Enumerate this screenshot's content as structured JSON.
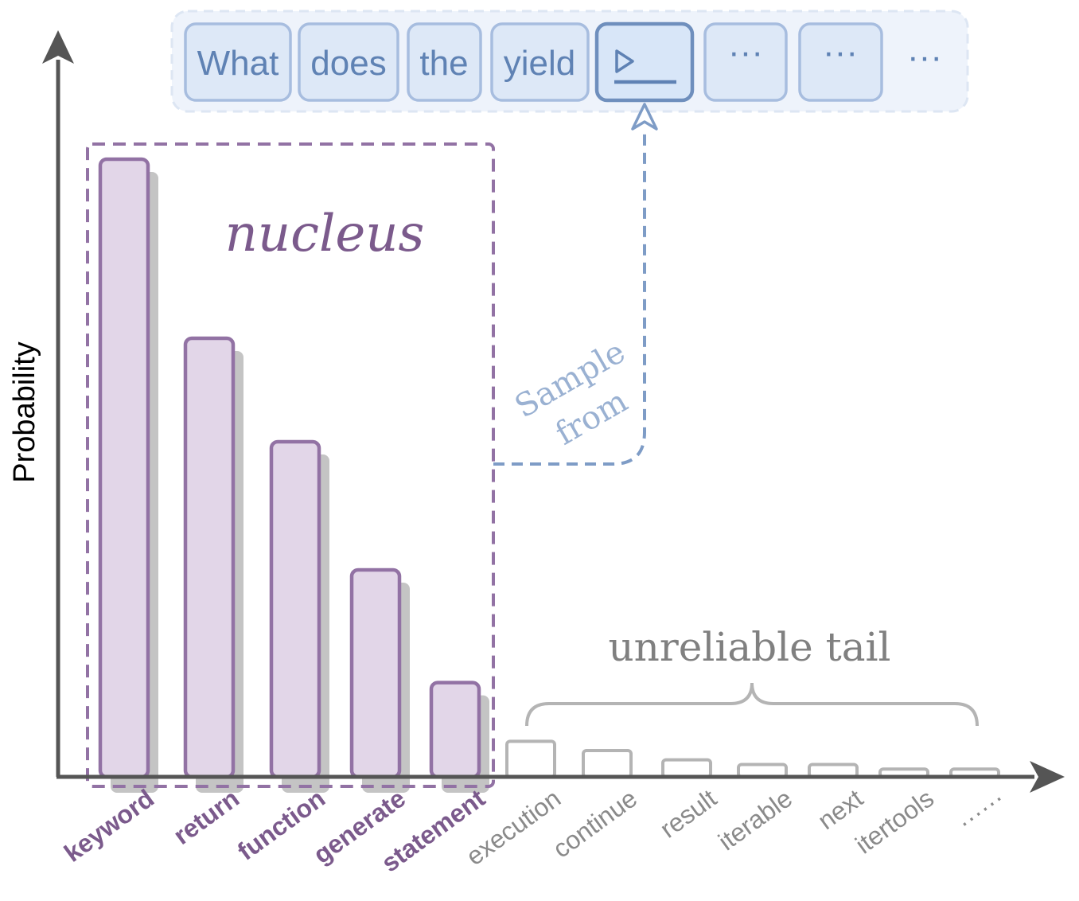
{
  "diagram": {
    "axis": {
      "ylabel": "Probability"
    },
    "prompt_tokens": [
      "What",
      "does",
      "the",
      "yield"
    ],
    "next_token_placeholder": "▷_",
    "trailing_tokens": [
      "···",
      "···",
      "···"
    ],
    "nucleus_label": "nucleus",
    "tail_label": "unreliable tail",
    "sample_label_line1": "Sample",
    "sample_label_line2": "from"
  },
  "chart_data": {
    "type": "bar",
    "categories": [
      "keyword",
      "return",
      "function",
      "generate",
      "statement",
      "execution",
      "continue",
      "result",
      "iterable",
      "next",
      "itertools",
      "······"
    ],
    "values": [
      0.4,
      0.284,
      0.217,
      0.134,
      0.061,
      0.023,
      0.017,
      0.011,
      0.008,
      0.008,
      0.005,
      0.005
    ],
    "nucleus_count": 5,
    "colors": {
      "nucleus_fill": "#e2d6e8",
      "nucleus_stroke": "#9272a4",
      "tail_stroke": "#b4b4b4",
      "shadow": "#c4c4c4",
      "nucleus_text": "#7b5a8c",
      "tail_text": "#8a8a8a",
      "token_fill": "#dde8f7",
      "token_stroke": "#a7bddf",
      "token_text": "#5f82b4",
      "axis": "#555555"
    }
  }
}
